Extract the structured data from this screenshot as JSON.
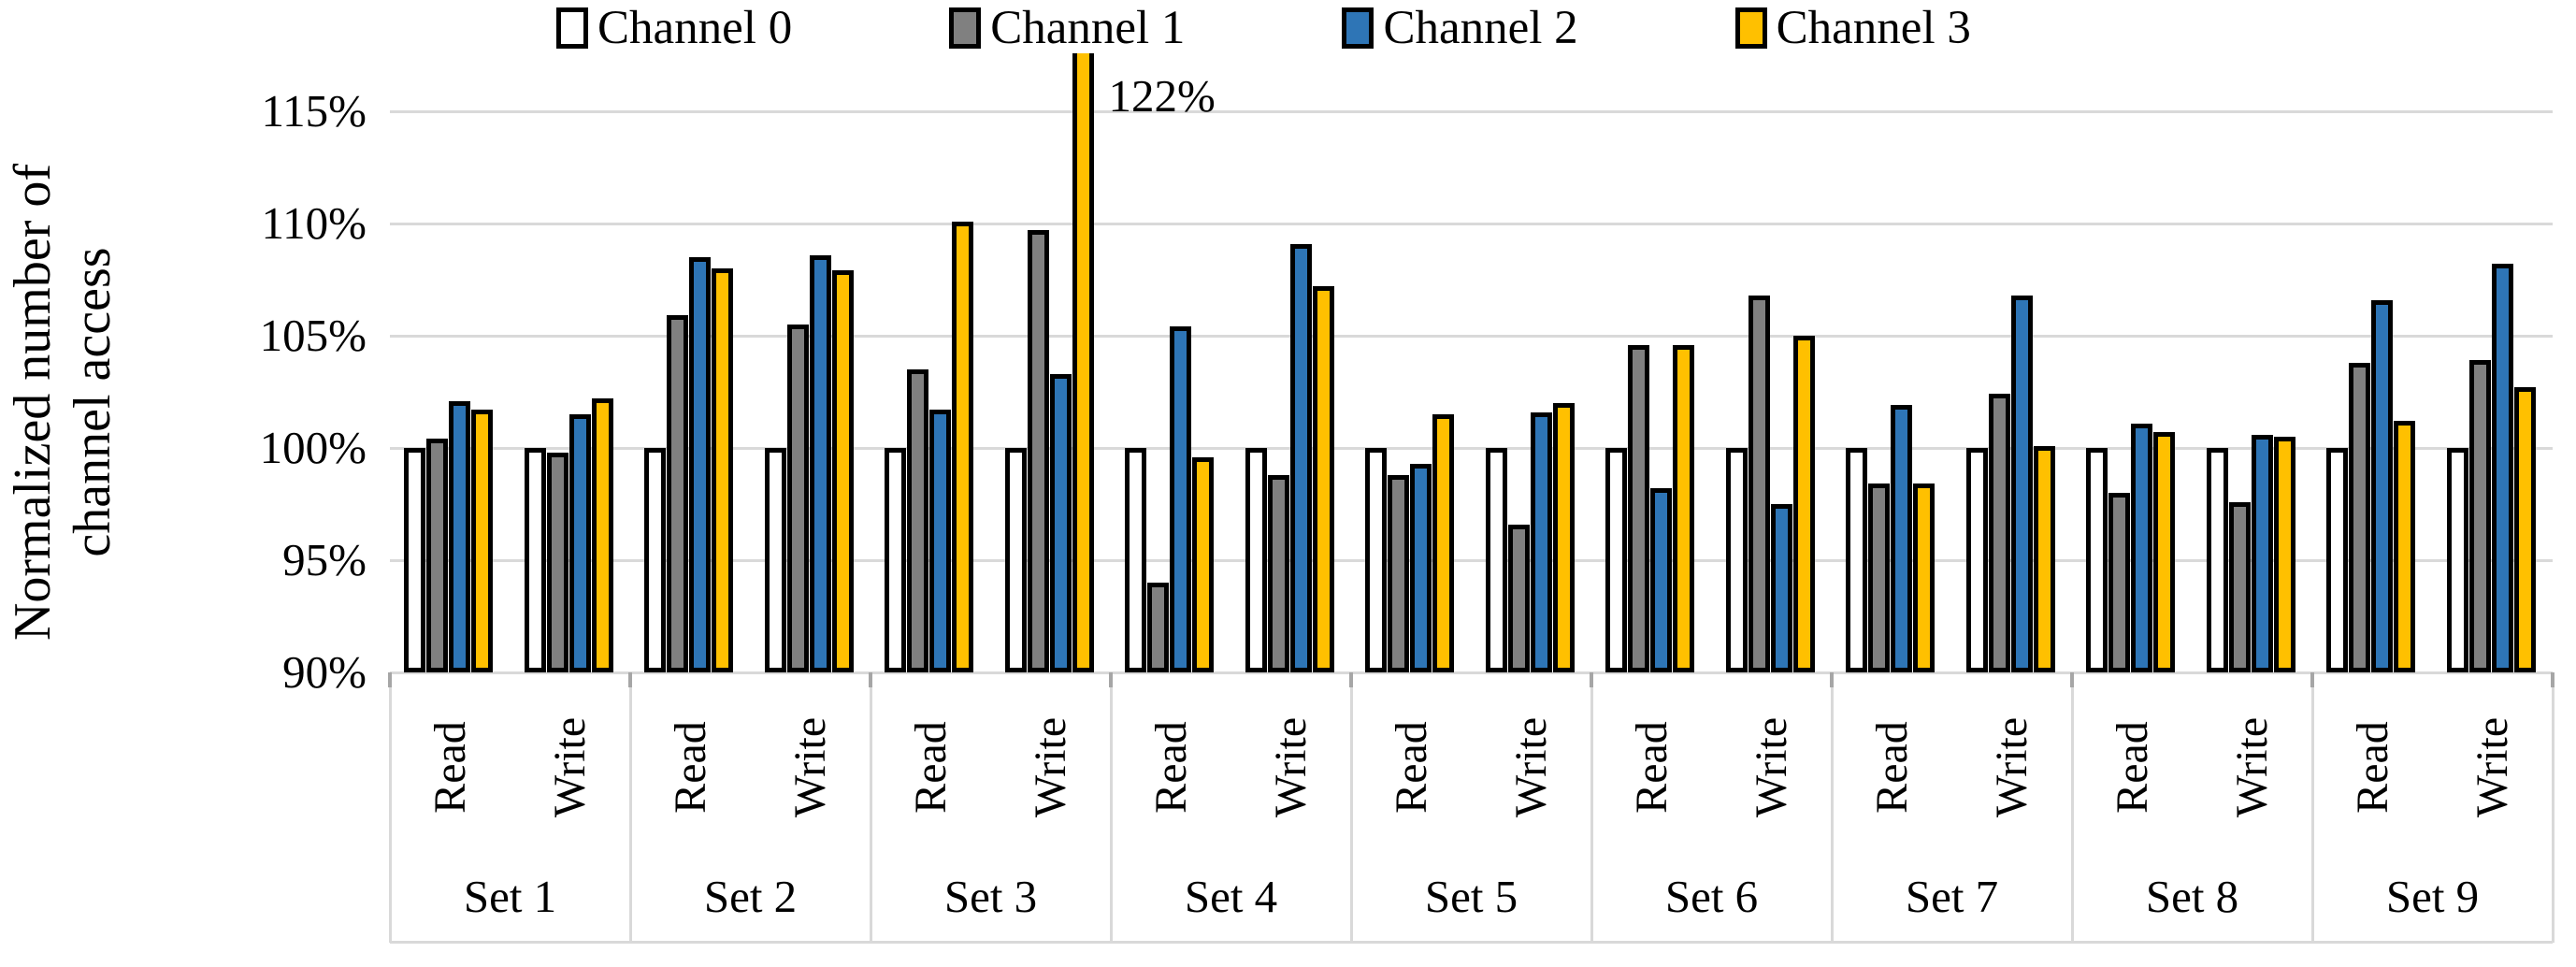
{
  "y_axis": {
    "title_line1": "Normalized number of",
    "title_line2": "channel access",
    "ticks": [
      "115%",
      "110%",
      "105%",
      "100%",
      "95%",
      "90%"
    ],
    "tick_values": [
      115,
      110,
      105,
      100,
      95,
      90
    ],
    "min": 90,
    "max": 115
  },
  "legend": {
    "items": [
      {
        "label": "Channel 0",
        "color": "#FFFFFF"
      },
      {
        "label": "Channel 1",
        "color": "#808080"
      },
      {
        "label": "Channel 2",
        "color": "#2E75B6"
      },
      {
        "label": "Channel 3",
        "color": "#FFC000"
      }
    ]
  },
  "chart_data": {
    "type": "bar",
    "title": "",
    "ylabel": "Normalized number of channel access",
    "unit": "%",
    "ylim": [
      90,
      115
    ],
    "grid": "horizontal",
    "legend_position": "top",
    "sets": [
      "Set 1",
      "Set 2",
      "Set 3",
      "Set 4",
      "Set 5",
      "Set 6",
      "Set 7",
      "Set 8",
      "Set 9"
    ],
    "group_labels": [
      "Read",
      "Write"
    ],
    "categories": [
      "Set 1 Read",
      "Set 1 Write",
      "Set 2 Read",
      "Set 2 Write",
      "Set 3 Read",
      "Set 3 Write",
      "Set 4 Read",
      "Set 4 Write",
      "Set 5 Read",
      "Set 5 Write",
      "Set 6 Read",
      "Set 6 Write",
      "Set 7 Read",
      "Set 7 Write",
      "Set 8 Read",
      "Set 8 Write",
      "Set 9 Read",
      "Set 9 Write"
    ],
    "series": [
      {
        "name": "Channel 0",
        "color": "#FFFFFF",
        "values": [
          100,
          100,
          100,
          100,
          100,
          100,
          100,
          100,
          100,
          100,
          100,
          100,
          100,
          100,
          100,
          100,
          100,
          100
        ]
      },
      {
        "name": "Channel 1",
        "color": "#808080",
        "values": [
          100.4,
          99.8,
          105.9,
          105.5,
          103.5,
          109.7,
          94.0,
          98.8,
          98.8,
          96.6,
          104.6,
          106.8,
          98.4,
          102.4,
          98.0,
          97.6,
          103.8,
          103.9
        ]
      },
      {
        "name": "Channel 2",
        "color": "#2E75B6",
        "values": [
          102.1,
          101.5,
          108.5,
          108.6,
          101.7,
          103.3,
          105.4,
          109.1,
          99.3,
          101.6,
          98.2,
          97.5,
          101.9,
          106.8,
          101.1,
          100.6,
          106.6,
          108.2
        ]
      },
      {
        "name": "Channel 3",
        "color": "#FFC000",
        "values": [
          101.7,
          102.2,
          108.0,
          107.9,
          110.1,
          122.0,
          99.6,
          107.2,
          101.5,
          102.0,
          104.6,
          105.0,
          98.4,
          100.1,
          100.7,
          100.5,
          101.2,
          102.7
        ]
      }
    ],
    "annotation": {
      "text": "122%",
      "category": "Set 3 Write",
      "category_index": 5,
      "series_index": 3,
      "value": 122
    },
    "clip_display_max": 117.6
  }
}
